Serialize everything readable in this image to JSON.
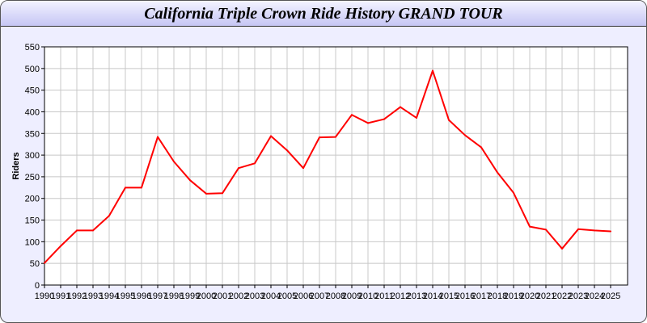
{
  "chart_data": {
    "type": "line",
    "title": "California Triple Crown Ride History GRAND TOUR",
    "xlabel": "",
    "ylabel": "Riders",
    "ylim": [
      0,
      550
    ],
    "yticks": [
      0,
      50,
      100,
      150,
      200,
      250,
      300,
      350,
      400,
      450,
      500,
      550
    ],
    "grid": true,
    "line_color": "#ff0000",
    "categories": [
      "1990",
      "1991",
      "1992",
      "1993",
      "1994",
      "1995",
      "1996",
      "1997",
      "1998",
      "1999",
      "2000",
      "2001",
      "2002",
      "2003",
      "2004",
      "2005",
      "2006",
      "2007",
      "2008",
      "2009",
      "2010",
      "2011",
      "2012",
      "2013",
      "2014",
      "2015",
      "2016",
      "2017",
      "2018",
      "2019",
      "2020",
      "2021",
      "2022",
      "2023",
      "2024",
      "2025"
    ],
    "values": [
      51,
      90,
      126,
      126,
      160,
      225,
      225,
      342,
      285,
      242,
      211,
      212,
      270,
      281,
      344,
      311,
      270,
      341,
      342,
      393,
      374,
      383,
      411,
      386,
      495,
      381,
      346,
      318,
      260,
      213,
      135,
      128,
      84,
      129,
      126,
      124
    ]
  }
}
